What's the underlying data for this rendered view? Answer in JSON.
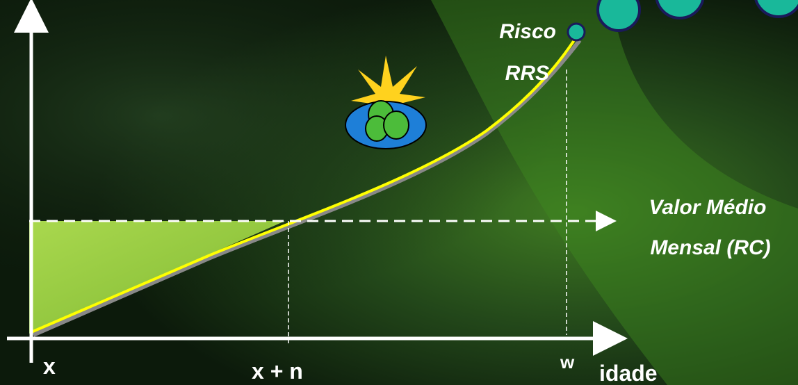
{
  "labels": {
    "risk": "Risco",
    "rrs": "RRS",
    "mean_value_1": "Valor Médio",
    "mean_value_2": "Mensal (RC)",
    "x": "x",
    "x_plus_n": "x + n",
    "w": "w",
    "age": "idade"
  }
}
